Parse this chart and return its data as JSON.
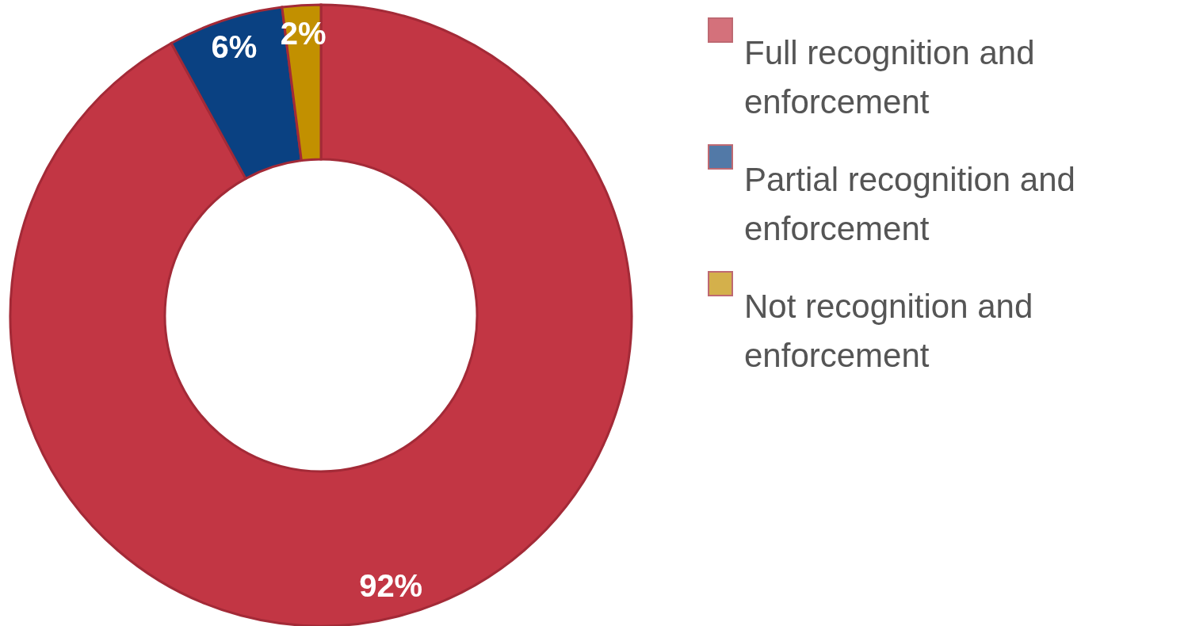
{
  "chart_data": {
    "type": "donut",
    "categories": [
      "Full recognition and enforcement",
      "Partial recognition and enforcement",
      "Not recognition and enforcement"
    ],
    "values": [
      92,
      6,
      2
    ],
    "colors": [
      "#c23644",
      "#0a4182",
      "#c29000"
    ],
    "value_labels": [
      "92%",
      "6%",
      "2%"
    ],
    "legend": "right"
  }
}
